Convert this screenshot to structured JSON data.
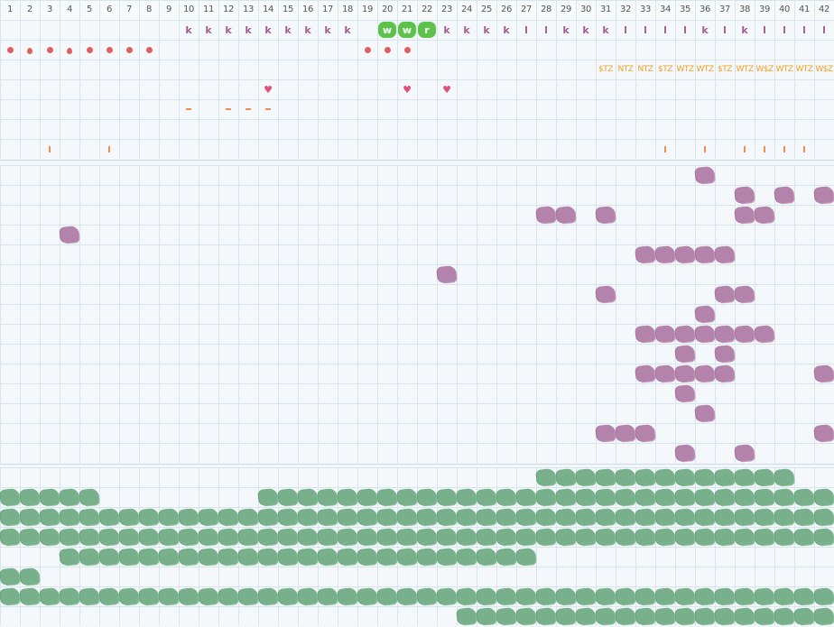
{
  "column_numbers": [
    "1",
    "2",
    "3",
    "4",
    "5",
    "6",
    "7",
    "8",
    "9",
    "10",
    "11",
    "12",
    "13",
    "14",
    "15",
    "16",
    "17",
    "18",
    "19",
    "20",
    "21",
    "22",
    "23",
    "24",
    "25",
    "26",
    "27",
    "28",
    "29",
    "30",
    "31",
    "32",
    "33",
    "34",
    "35",
    "36",
    "37",
    "38",
    "39",
    "40",
    "41",
    "42"
  ],
  "letter_row": [
    {
      "col": 10,
      "text": "k"
    },
    {
      "col": 11,
      "text": "k"
    },
    {
      "col": 12,
      "text": "k"
    },
    {
      "col": 13,
      "text": "k"
    },
    {
      "col": 14,
      "text": "k"
    },
    {
      "col": 15,
      "text": "k"
    },
    {
      "col": 16,
      "text": "k"
    },
    {
      "col": 17,
      "text": "k"
    },
    {
      "col": 18,
      "text": "k"
    },
    {
      "col": 23,
      "text": "k"
    },
    {
      "col": 24,
      "text": "k"
    },
    {
      "col": 25,
      "text": "k"
    },
    {
      "col": 26,
      "text": "k"
    },
    {
      "col": 27,
      "text": "l"
    },
    {
      "col": 28,
      "text": "l"
    },
    {
      "col": 29,
      "text": "k"
    },
    {
      "col": 30,
      "text": "k"
    },
    {
      "col": 31,
      "text": "k"
    },
    {
      "col": 32,
      "text": "l"
    },
    {
      "col": 33,
      "text": "l"
    },
    {
      "col": 34,
      "text": "l"
    },
    {
      "col": 35,
      "text": "l"
    },
    {
      "col": 36,
      "text": "k"
    },
    {
      "col": 37,
      "text": "l"
    },
    {
      "col": 38,
      "text": "k"
    },
    {
      "col": 39,
      "text": "l"
    },
    {
      "col": 40,
      "text": "l"
    },
    {
      "col": 41,
      "text": "l"
    },
    {
      "col": 42,
      "text": "l"
    }
  ],
  "badges": [
    {
      "col": 20,
      "text": "w"
    },
    {
      "col": 21,
      "text": "w"
    },
    {
      "col": 22,
      "text": "r"
    }
  ],
  "dot_row": [
    {
      "col": 1,
      "shape": "dot"
    },
    {
      "col": 2,
      "shape": "drop"
    },
    {
      "col": 3,
      "shape": "dot"
    },
    {
      "col": 4,
      "shape": "drop"
    },
    {
      "col": 5,
      "shape": "dot"
    },
    {
      "col": 6,
      "shape": "dot"
    },
    {
      "col": 7,
      "shape": "dot"
    },
    {
      "col": 8,
      "shape": "dot"
    },
    {
      "col": 19,
      "shape": "dot"
    },
    {
      "col": 20,
      "shape": "dot"
    },
    {
      "col": 21,
      "shape": "dot"
    }
  ],
  "zone_row": [
    {
      "col": 31,
      "text": "$TZ"
    },
    {
      "col": 32,
      "text": "NTZ"
    },
    {
      "col": 33,
      "text": "NTZ"
    },
    {
      "col": 34,
      "text": "$TZ"
    },
    {
      "col": 35,
      "text": "WTZ"
    },
    {
      "col": 36,
      "text": "WTZ"
    },
    {
      "col": 37,
      "text": "$TZ"
    },
    {
      "col": 38,
      "text": "WTZ"
    },
    {
      "col": 39,
      "text": "W$Z"
    },
    {
      "col": 40,
      "text": "WTZ"
    },
    {
      "col": 41,
      "text": "WTZ"
    },
    {
      "col": 42,
      "text": "W$Z"
    }
  ],
  "heart_row": [
    {
      "col": 14,
      "text": "♥"
    },
    {
      "col": 21,
      "text": "♥"
    },
    {
      "col": 23,
      "text": "♥"
    }
  ],
  "dash_row": [
    10,
    12,
    13,
    14
  ],
  "tick_row": [
    3,
    6,
    34,
    36,
    38,
    39,
    40,
    41
  ],
  "purple_blobs": [
    [
      36,
      0
    ],
    [
      38,
      1
    ],
    [
      40,
      1
    ],
    [
      42,
      1
    ],
    [
      28,
      2
    ],
    [
      29,
      2
    ],
    [
      31,
      2
    ],
    [
      38,
      2
    ],
    [
      39,
      2
    ],
    [
      4,
      3
    ],
    [
      33,
      4
    ],
    [
      34,
      4
    ],
    [
      35,
      4
    ],
    [
      36,
      4
    ],
    [
      37,
      4
    ],
    [
      23,
      5
    ],
    [
      31,
      6
    ],
    [
      37,
      6
    ],
    [
      38,
      6
    ],
    [
      36,
      7
    ],
    [
      33,
      8
    ],
    [
      34,
      8
    ],
    [
      35,
      8
    ],
    [
      36,
      8
    ],
    [
      37,
      8
    ],
    [
      38,
      8
    ],
    [
      39,
      8
    ],
    [
      35,
      9
    ],
    [
      37,
      9
    ],
    [
      33,
      10
    ],
    [
      34,
      10
    ],
    [
      35,
      10
    ],
    [
      36,
      10
    ],
    [
      37,
      10
    ],
    [
      42,
      10
    ],
    [
      35,
      11
    ],
    [
      36,
      12
    ],
    [
      31,
      13
    ],
    [
      32,
      13
    ],
    [
      33,
      13
    ],
    [
      42,
      13
    ],
    [
      35,
      14
    ],
    [
      38,
      14
    ]
  ],
  "green_rows": [
    {
      "start": 28,
      "end": 40
    },
    {
      "ranges": [
        [
          1,
          5
        ],
        [
          14,
          42
        ]
      ]
    },
    {
      "start": 1,
      "end": 42
    },
    {
      "start": 1,
      "end": 42
    },
    {
      "start": 4,
      "end": 27
    },
    {
      "start": 1,
      "end": 2
    },
    {
      "start": 1,
      "end": 42
    },
    {
      "start": 24,
      "end": 42
    }
  ],
  "colors": {
    "purple": "#b383ab",
    "green": "#77b08a",
    "badge": "#5cc24a",
    "accent_orange": "#f0a020",
    "dot_red": "#e06060",
    "heart": "#e0507a"
  }
}
